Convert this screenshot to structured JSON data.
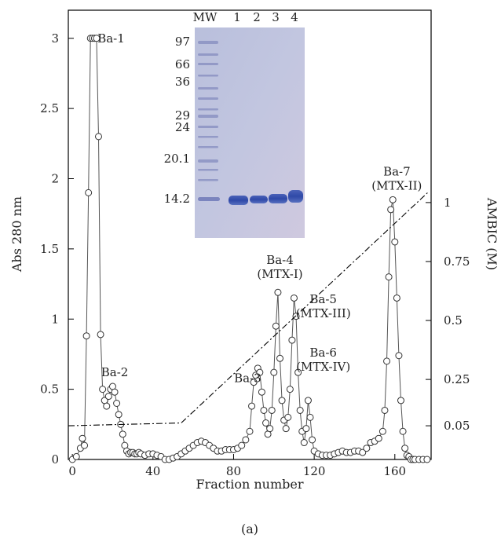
{
  "chart_data": {
    "type": "scatter",
    "caption": "(a)",
    "xlabel": "Fraction number",
    "ylabel_left": "Abs 280 nm",
    "ylabel_right": "AMBIC (M)",
    "xlim": [
      -2,
      178
    ],
    "ylim_left": [
      0,
      3.2
    ],
    "x_ticks": [
      0,
      40,
      80,
      120,
      160
    ],
    "y_left_ticks": [
      0,
      0.5,
      1,
      1.5,
      2,
      2.5,
      3
    ],
    "y_left_tick_labels": [
      "0",
      "0.5",
      "1",
      "1.5",
      "2",
      "2.5",
      "3"
    ],
    "y_right_ticks": [
      {
        "label": "0.05",
        "abs": 0.24
      },
      {
        "label": "0.25",
        "abs": 0.57
      },
      {
        "label": "0.5",
        "abs": 0.99
      },
      {
        "label": "0.75",
        "abs": 1.41
      },
      {
        "label": "1",
        "abs": 1.83
      }
    ],
    "grid": false,
    "series": [
      {
        "style": "open-circles-with-line",
        "x": [
          0,
          2,
          4,
          5,
          6,
          7,
          8,
          9,
          10,
          11,
          12,
          13,
          14,
          15,
          16,
          17,
          18,
          19,
          20,
          21,
          22,
          23,
          24,
          25,
          26,
          27,
          28,
          29,
          30,
          31,
          32,
          33,
          34,
          36,
          38,
          40,
          42,
          44,
          46,
          48,
          50,
          52,
          54,
          56,
          58,
          60,
          62,
          64,
          66,
          68,
          70,
          72,
          74,
          76,
          78,
          80,
          82,
          84,
          86,
          88,
          89,
          90,
          91,
          92,
          93,
          94,
          95,
          96,
          97,
          98,
          99,
          100,
          101,
          102,
          103,
          104,
          105,
          106,
          107,
          108,
          109,
          110,
          111,
          112,
          113,
          114,
          115,
          116,
          117,
          118,
          119,
          120,
          122,
          124,
          126,
          128,
          130,
          132,
          134,
          136,
          138,
          140,
          142,
          144,
          146,
          148,
          150,
          152,
          154,
          155,
          156,
          157,
          158,
          159,
          160,
          161,
          162,
          163,
          164,
          165,
          166,
          167,
          168,
          169,
          170,
          172,
          174,
          176
        ],
        "y": [
          0.0,
          0.02,
          0.08,
          0.15,
          0.1,
          0.88,
          1.9,
          3.0,
          3.0,
          3.0,
          3.0,
          2.3,
          0.89,
          0.5,
          0.42,
          0.38,
          0.45,
          0.5,
          0.52,
          0.48,
          0.4,
          0.32,
          0.25,
          0.18,
          0.1,
          0.06,
          0.04,
          0.05,
          0.05,
          0.04,
          0.04,
          0.05,
          0.04,
          0.03,
          0.04,
          0.04,
          0.03,
          0.02,
          0.0,
          0.0,
          0.01,
          0.02,
          0.04,
          0.06,
          0.08,
          0.1,
          0.12,
          0.13,
          0.12,
          0.1,
          0.08,
          0.06,
          0.06,
          0.07,
          0.07,
          0.07,
          0.08,
          0.1,
          0.14,
          0.2,
          0.38,
          0.55,
          0.6,
          0.65,
          0.62,
          0.48,
          0.35,
          0.26,
          0.18,
          0.22,
          0.35,
          0.62,
          0.95,
          1.19,
          0.72,
          0.42,
          0.28,
          0.22,
          0.3,
          0.5,
          0.85,
          1.15,
          1.02,
          0.62,
          0.35,
          0.2,
          0.12,
          0.22,
          0.42,
          0.3,
          0.14,
          0.06,
          0.04,
          0.03,
          0.03,
          0.03,
          0.04,
          0.05,
          0.06,
          0.05,
          0.05,
          0.06,
          0.06,
          0.05,
          0.08,
          0.12,
          0.13,
          0.15,
          0.2,
          0.35,
          0.7,
          1.3,
          1.78,
          1.85,
          1.55,
          1.15,
          0.74,
          0.42,
          0.2,
          0.08,
          0.03,
          0.02,
          0.0,
          0.0,
          0.0,
          0.0,
          0.0,
          0.0
        ]
      },
      {
        "name": "AMBIC gradient",
        "style": "dash-dot",
        "x": [
          -2,
          54,
          177
        ],
        "y": [
          0.24,
          0.26,
          1.91
        ]
      }
    ],
    "annotations": [
      {
        "lines": [
          "Ba-1"
        ],
        "x": 12.5,
        "y": 3.0,
        "anchor": "start"
      },
      {
        "lines": [
          "Ba-2"
        ],
        "x": 21,
        "y": 0.62,
        "anchor": "middle"
      },
      {
        "lines": [
          "Ba-3"
        ],
        "x": 87,
        "y": 0.58,
        "anchor": "middle"
      },
      {
        "lines": [
          "Ba-4",
          "(MTX-I)"
        ],
        "x": 103,
        "y": 1.42,
        "anchor": "middle"
      },
      {
        "lines": [
          "Ba-5",
          "(MTX-III)"
        ],
        "x": 124.5,
        "y": 1.14,
        "anchor": "middle"
      },
      {
        "lines": [
          "Ba-6",
          "(MTX-IV)"
        ],
        "x": 124.5,
        "y": 0.76,
        "anchor": "middle"
      },
      {
        "lines": [
          "Ba-7",
          "(MTX-II)"
        ],
        "x": 161,
        "y": 2.05,
        "anchor": "middle"
      }
    ],
    "inset_gel": {
      "lane_labels": [
        "MW",
        "1",
        "2",
        "3",
        "4"
      ],
      "mw_markers": [
        "97",
        "66",
        "36",
        "29",
        "24",
        "20.1",
        "14.2"
      ]
    }
  }
}
